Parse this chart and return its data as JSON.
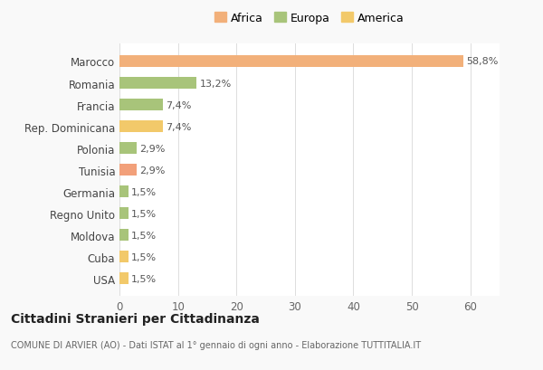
{
  "categories": [
    "USA",
    "Cuba",
    "Moldova",
    "Regno Unito",
    "Germania",
    "Tunisia",
    "Polonia",
    "Rep. Dominicana",
    "Francia",
    "Romania",
    "Marocco"
  ],
  "values": [
    1.5,
    1.5,
    1.5,
    1.5,
    1.5,
    2.9,
    2.9,
    7.4,
    7.4,
    13.2,
    58.8
  ],
  "colors": [
    "#f2c96a",
    "#f2c96a",
    "#a8c47a",
    "#a8c47a",
    "#a8c47a",
    "#f2a07a",
    "#a8c47a",
    "#f2c96a",
    "#a8c47a",
    "#a8c47a",
    "#f2b07a"
  ],
  "labels": [
    "1,5%",
    "1,5%",
    "1,5%",
    "1,5%",
    "1,5%",
    "2,9%",
    "2,9%",
    "7,4%",
    "7,4%",
    "13,2%",
    "58,8%"
  ],
  "legend_labels": [
    "Africa",
    "Europa",
    "America"
  ],
  "legend_colors": [
    "#f2b07a",
    "#a8c47a",
    "#f2c96a"
  ],
  "title": "Cittadini Stranieri per Cittadinanza",
  "subtitle": "COMUNE DI ARVIER (AO) - Dati ISTAT al 1° gennaio di ogni anno - Elaborazione TUTTITALIA.IT",
  "xlim": [
    0,
    65
  ],
  "xticks": [
    0,
    10,
    20,
    30,
    40,
    50,
    60
  ],
  "background_color": "#f9f9f9",
  "bar_background": "#ffffff",
  "bar_height": 0.55
}
